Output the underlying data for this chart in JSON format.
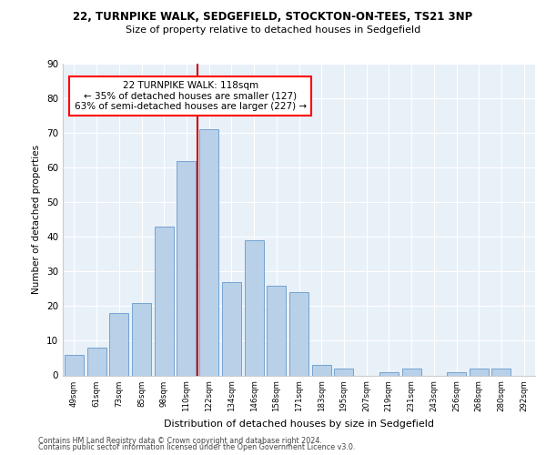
{
  "title1": "22, TURNPIKE WALK, SEDGEFIELD, STOCKTON-ON-TEES, TS21 3NP",
  "title2": "Size of property relative to detached houses in Sedgefield",
  "xlabel": "Distribution of detached houses by size in Sedgefield",
  "ylabel": "Number of detached properties",
  "categories": [
    "49sqm",
    "61sqm",
    "73sqm",
    "85sqm",
    "98sqm",
    "110sqm",
    "122sqm",
    "134sqm",
    "146sqm",
    "158sqm",
    "171sqm",
    "183sqm",
    "195sqm",
    "207sqm",
    "219sqm",
    "231sqm",
    "243sqm",
    "256sqm",
    "268sqm",
    "280sqm",
    "292sqm"
  ],
  "values": [
    6,
    8,
    18,
    21,
    43,
    62,
    71,
    27,
    39,
    26,
    24,
    3,
    2,
    0,
    1,
    2,
    0,
    1,
    2,
    2,
    0
  ],
  "bar_color": "#b8d0e8",
  "bar_edge_color": "#6699cc",
  "vline_color": "#cc0000",
  "annotation_text": "22 TURNPIKE WALK: 118sqm\n← 35% of detached houses are smaller (127)\n63% of semi-detached houses are larger (227) →",
  "ylim": [
    0,
    90
  ],
  "yticks": [
    0,
    10,
    20,
    30,
    40,
    50,
    60,
    70,
    80,
    90
  ],
  "footer1": "Contains HM Land Registry data © Crown copyright and database right 2024.",
  "footer2": "Contains public sector information licensed under the Open Government Licence v3.0.",
  "plot_bg_color": "#e8f0f8"
}
